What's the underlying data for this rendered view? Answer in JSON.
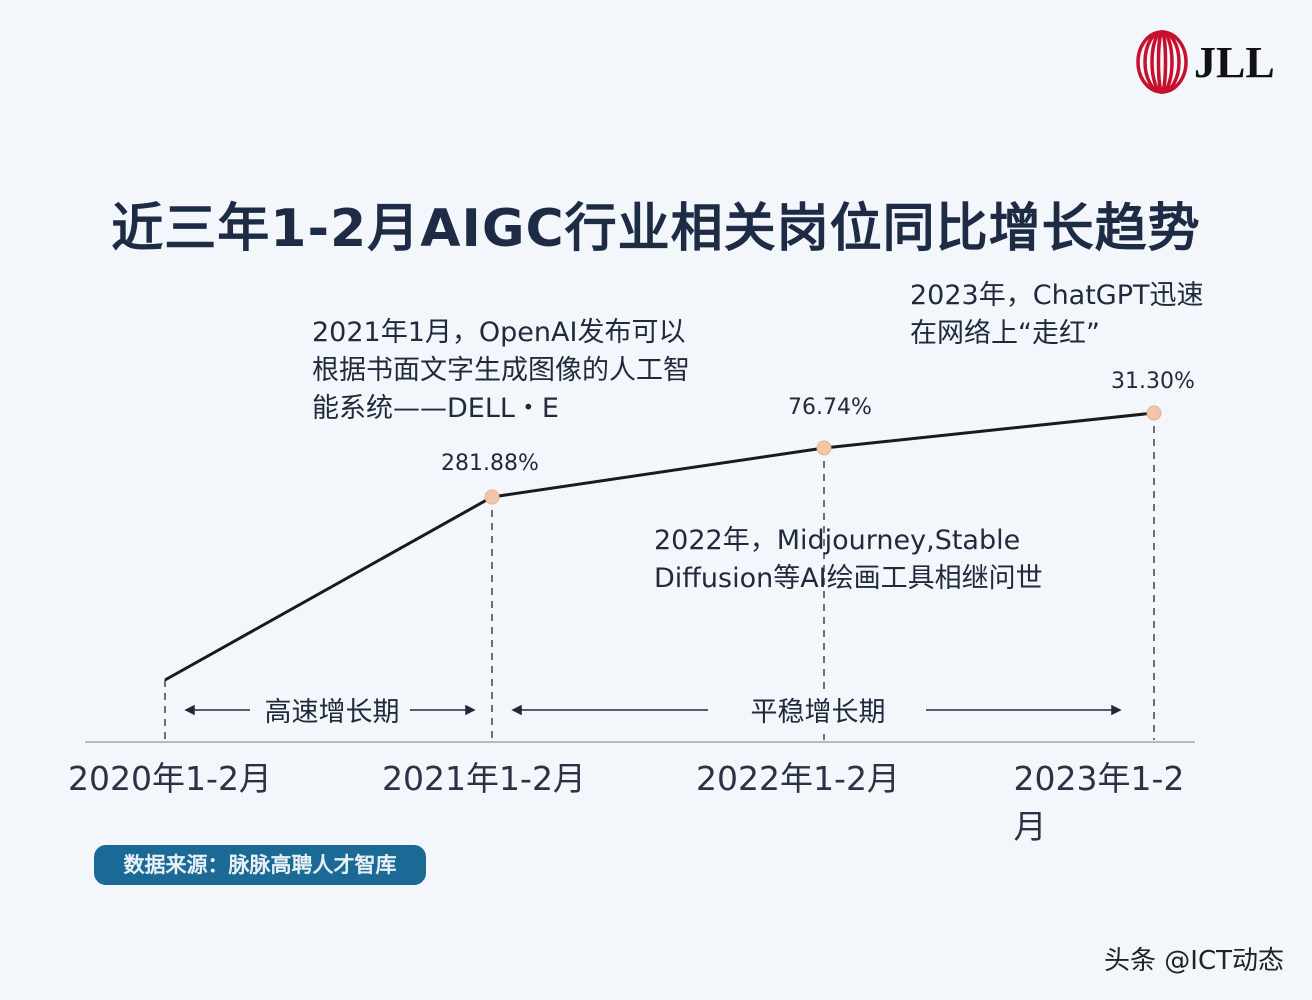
{
  "logo": {
    "text": "JLL",
    "color": "#c8102e"
  },
  "chart_data": {
    "type": "line",
    "title": "近三年1-2月AIGC行业相关岗位同比增长趋势",
    "categories": [
      "2020年1-2月",
      "2021年1-2月",
      "2022年1-2月",
      "2023年1-2月"
    ],
    "series": [
      {
        "name": "同比增长",
        "values": [
          null,
          281.88,
          76.74,
          31.3
        ],
        "labels": [
          "",
          "281.88%",
          "76.74%",
          "31.30%"
        ]
      }
    ],
    "annotations": [
      "2021年1月，OpenAI发布可以\n根据书面文字生成图像的人工智\n能系统——DELL・E",
      "2022年，Midjourney,Stable\nDiffusion等AI绘画工具相继问世",
      "2023年，ChatGPT迅速\n在网络上“走红”"
    ],
    "phases": [
      "高速增长期",
      "平稳增长期"
    ],
    "line_color": "#1a1a1a",
    "marker_color": "#f2c6a8"
  },
  "source": "数据来源：脉脉高聘人才智库",
  "watermark": "头条 @ICT动态"
}
